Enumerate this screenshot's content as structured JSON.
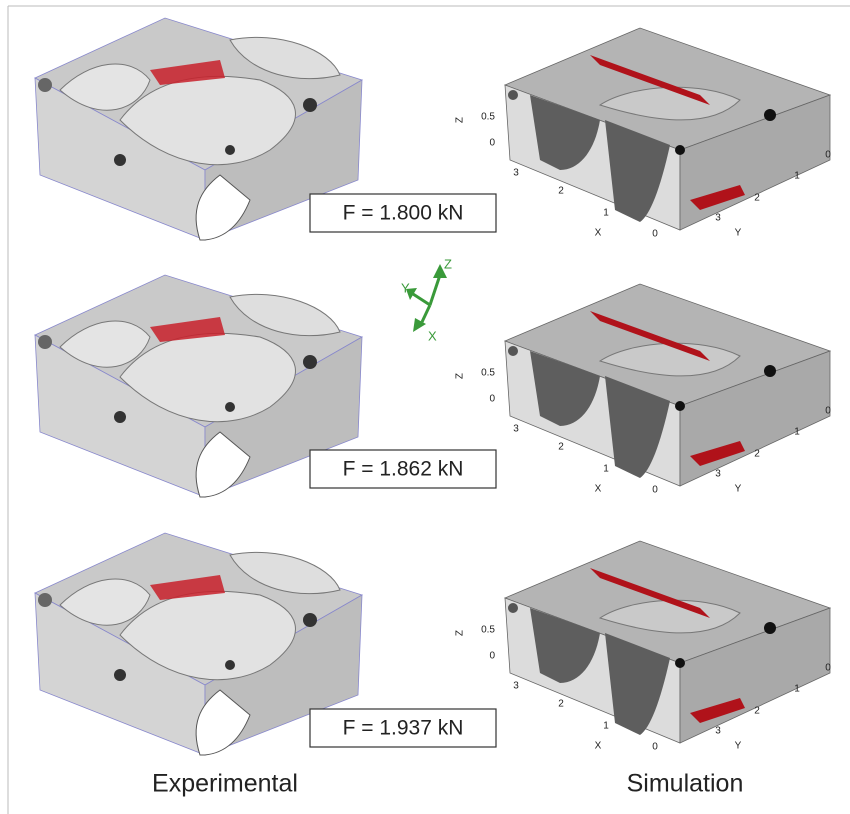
{
  "experimental": {
    "label": "Experimental",
    "panels": [
      {
        "force": "F = 1.800 kN"
      },
      {
        "force": "F = 1.862 kN"
      },
      {
        "force": "F = 1.937 kN"
      }
    ]
  },
  "simulation": {
    "label": "Simulation",
    "panels": [
      {
        "z_label": "Z",
        "z_ticks": [
          "0.5",
          "0"
        ],
        "x_label": "X",
        "x_ticks": [
          "3",
          "2",
          "1",
          "0"
        ],
        "y_label": "Y",
        "y_ticks": [
          "0",
          "1",
          "2",
          "3"
        ]
      },
      {
        "z_label": "Z",
        "z_ticks": [
          "0.5",
          "0"
        ],
        "x_label": "X",
        "x_ticks": [
          "3",
          "2",
          "1",
          "0"
        ],
        "y_label": "Y",
        "y_ticks": [
          "0",
          "1",
          "2",
          "3"
        ]
      },
      {
        "z_label": "Z",
        "z_ticks": [
          "0.5",
          "0"
        ],
        "x_label": "X",
        "x_ticks": [
          "3",
          "2",
          "1",
          "0"
        ],
        "y_label": "Y",
        "y_ticks": [
          "0",
          "1",
          "2",
          "3"
        ]
      }
    ]
  },
  "orientation": {
    "x": "X",
    "y": "Y",
    "z": "Z"
  }
}
